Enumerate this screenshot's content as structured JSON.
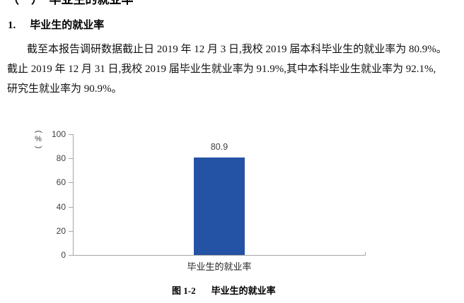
{
  "page": {
    "section_heading": "（一）　毕业生的就业率",
    "subsection_number": "1.",
    "subsection_title": "毕业生的就业率",
    "paragraph_lines": [
      "截至本报告调研数据截止日 2019 年 12 月 3 日,我校 2019 届本科毕业生的就业率为 80.9%。",
      "截止 2019 年 12 月 31 日,我校 2019 届毕业生就业率为 91.9%,其中本科毕业生就业率为 92.1%,",
      "研究生就业率为 90.9%。"
    ],
    "figure_caption_label": "图 1-2",
    "figure_caption_title": "毕业生的就业率"
  },
  "chart_data": {
    "type": "bar",
    "title": "",
    "categories": [
      "毕业生的就业率"
    ],
    "values": [
      80.9
    ],
    "data_labels": [
      "80.9"
    ],
    "xlabel": "",
    "ylabel": "(%)",
    "ylim": [
      0,
      100
    ],
    "yticks": [
      100,
      80,
      60,
      40,
      20,
      0
    ],
    "grid": false,
    "legend": "none",
    "bar_color": "#2452a4",
    "axis_color": "#a6a6a6",
    "tick_label_color": "#404040"
  }
}
